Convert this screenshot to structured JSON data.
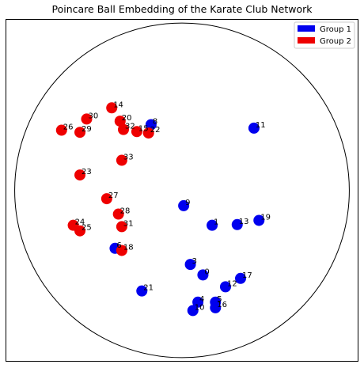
{
  "chart_data": {
    "type": "scatter",
    "title": "Poincare Ball Embedding of the Karate Club Network",
    "xlabel": "",
    "ylabel": "",
    "xlim": [
      -1.05,
      1.05
    ],
    "ylim": [
      -1.22,
      1.22
    ],
    "ticks_visible": false,
    "grid": false,
    "unit_circle": true,
    "legend_position": "top-right",
    "series": [
      {
        "name": "Group 1",
        "color": "#0000ee",
        "points": [
          {
            "label": "8",
            "x": -0.185,
            "y": 0.47
          },
          {
            "label": "11",
            "x": 0.43,
            "y": 0.445
          },
          {
            "label": "9",
            "x": 0.01,
            "y": -0.11
          },
          {
            "label": "1",
            "x": 0.18,
            "y": -0.25
          },
          {
            "label": "13",
            "x": 0.33,
            "y": -0.245
          },
          {
            "label": "19",
            "x": 0.46,
            "y": -0.215
          },
          {
            "label": "6",
            "x": -0.4,
            "y": -0.415
          },
          {
            "label": "3",
            "x": 0.05,
            "y": -0.53
          },
          {
            "label": "0",
            "x": 0.125,
            "y": -0.605
          },
          {
            "label": "17",
            "x": 0.35,
            "y": -0.63
          },
          {
            "label": "12",
            "x": 0.26,
            "y": -0.69
          },
          {
            "label": "21",
            "x": -0.24,
            "y": -0.72
          },
          {
            "label": "4",
            "x": 0.095,
            "y": -0.8
          },
          {
            "label": "5",
            "x": 0.2,
            "y": -0.8
          },
          {
            "label": "16",
            "x": 0.2,
            "y": -0.84
          },
          {
            "label": "10",
            "x": 0.065,
            "y": -0.86
          }
        ]
      },
      {
        "name": "Group 2",
        "color": "#ee0000",
        "points": [
          {
            "label": "14",
            "x": -0.42,
            "y": 0.59
          },
          {
            "label": "30",
            "x": -0.57,
            "y": 0.51
          },
          {
            "label": "20",
            "x": -0.37,
            "y": 0.495
          },
          {
            "label": "26",
            "x": -0.72,
            "y": 0.43
          },
          {
            "label": "29",
            "x": -0.61,
            "y": 0.415
          },
          {
            "label": "32",
            "x": -0.35,
            "y": 0.435
          },
          {
            "label": "15",
            "x": -0.27,
            "y": 0.42
          },
          {
            "label": "22",
            "x": -0.2,
            "y": 0.41
          },
          {
            "label": "33",
            "x": -0.36,
            "y": 0.215
          },
          {
            "label": "23",
            "x": -0.61,
            "y": 0.11
          },
          {
            "label": "27",
            "x": -0.45,
            "y": -0.06
          },
          {
            "label": "28",
            "x": -0.38,
            "y": -0.17
          },
          {
            "label": "31",
            "x": -0.36,
            "y": -0.26
          },
          {
            "label": "24",
            "x": -0.65,
            "y": -0.25
          },
          {
            "label": "25",
            "x": -0.61,
            "y": -0.29
          },
          {
            "label": "18",
            "x": -0.36,
            "y": -0.43
          }
        ]
      }
    ]
  }
}
